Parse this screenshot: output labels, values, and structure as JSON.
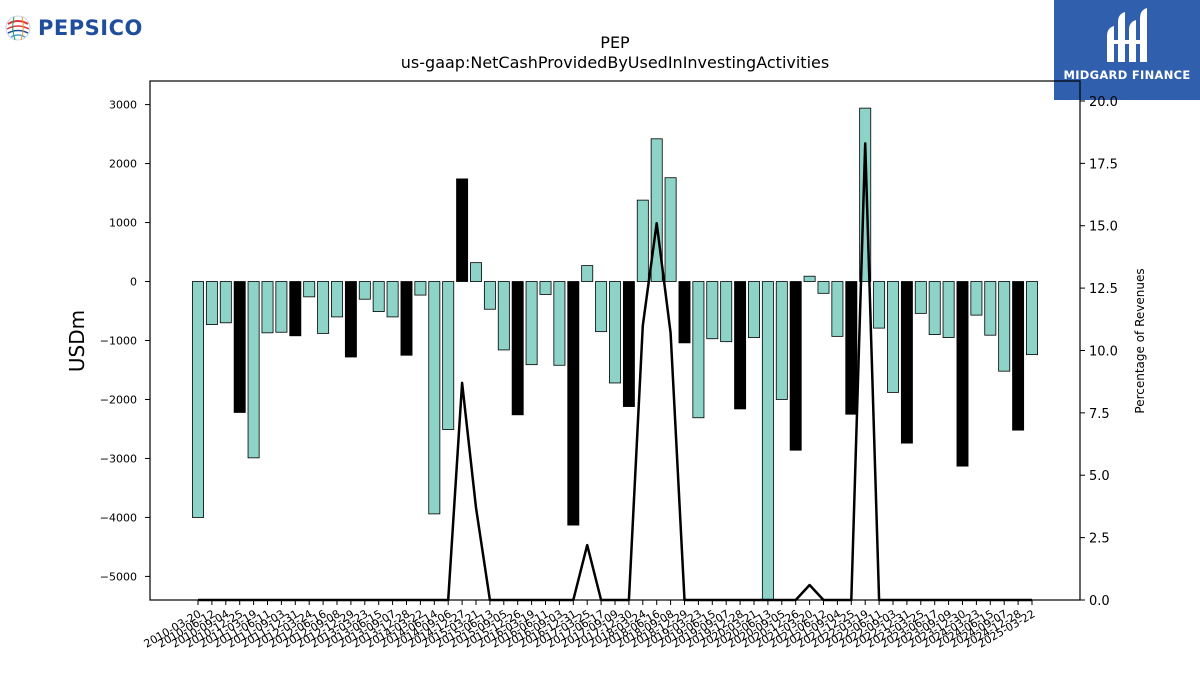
{
  "brand": {
    "left_logo_text": "PEPSICO",
    "right_logo_text": "MIDGARD FINANCE",
    "left_accent": "#1f4f9c",
    "right_background": "#2f5fad"
  },
  "chart_data": {
    "type": "bar",
    "title": "PEP",
    "subtitle": "us-gaap:NetCashProvidedByUsedInInvestingActivities",
    "ylabel": "USDm",
    "y2label": "Percentage of Revenues",
    "ylim": [
      -5400,
      3400
    ],
    "yticks": [
      3000,
      2000,
      1000,
      0,
      -1000,
      -2000,
      -3000,
      -4000,
      -5000
    ],
    "ytick_labels": [
      "3000",
      "2000",
      "1000",
      "0",
      "−1000",
      "−2000",
      "−3000",
      "−4000",
      "−5000"
    ],
    "y2lim": [
      0,
      20.8
    ],
    "y2ticks": [
      0,
      2.5,
      5,
      7.5,
      10,
      12.5,
      15,
      17.5,
      20
    ],
    "y2tick_labels": [
      "0.0",
      "2.5",
      "5.0",
      "7.5",
      "10.0",
      "12.5",
      "15.0",
      "17.5",
      "20.0"
    ],
    "grid": false,
    "legend": "none",
    "colors": {
      "quarter": "#8dd3c7",
      "annual": "#000000",
      "line": "#000000",
      "edge": "#000000"
    },
    "categories": [
      "2010-03-20",
      "2010-06-12",
      "2010-09-04",
      "2010-12-25",
      "2011-03-19",
      "2011-06-11",
      "2011-09-03",
      "2011-12-31",
      "2012-03-24",
      "2012-06-16",
      "2012-09-08",
      "2012-12-29",
      "2013-03-23",
      "2013-06-15",
      "2013-09-07",
      "2013-12-28",
      "2014-03-22",
      "2014-06-14",
      "2014-09-06",
      "2014-12-27",
      "2015-03-21",
      "2015-06-13",
      "2015-09-05",
      "2015-12-26",
      "2016-03-19",
      "2016-06-11",
      "2016-09-03",
      "2016-12-31",
      "2017-03-25",
      "2017-06-17",
      "2017-09-09",
      "2017-12-30",
      "2018-03-24",
      "2018-06-16",
      "2018-09-08",
      "2018-12-29",
      "2019-03-23",
      "2019-06-15",
      "2019-09-07",
      "2019-12-28",
      "2020-03-21",
      "2020-06-13",
      "2020-09-05",
      "2020-12-26",
      "2021-03-20",
      "2021-06-12",
      "2021-09-04",
      "2021-12-25",
      "2022-03-19",
      "2022-06-11",
      "2022-09-03",
      "2022-12-31",
      "2023-03-25",
      "2023-06-17",
      "2023-09-09",
      "2023-12-30",
      "2024-03-23",
      "2024-06-15",
      "2024-09-07",
      "2024-12-28",
      "2025-03-22"
    ],
    "values": [
      -4000,
      -730,
      -700,
      -2220,
      -2990,
      -870,
      -860,
      -920,
      -260,
      -880,
      -600,
      -1280,
      -300,
      -510,
      -600,
      -1250,
      -230,
      -3940,
      -2510,
      1740,
      320,
      -470,
      -1160,
      -2260,
      -1410,
      -220,
      -1420,
      -4130,
      270,
      -850,
      -1720,
      -2120,
      1380,
      2420,
      1760,
      -1040,
      -2310,
      -970,
      -1020,
      -2160,
      -950,
      -5400,
      -2000,
      -2860,
      90,
      -200,
      -930,
      -2250,
      2940,
      -790,
      -1880,
      -2740,
      -540,
      -900,
      -950,
      -3130,
      -570,
      -910,
      -1520,
      -2520,
      -1240
    ],
    "annual": [
      false,
      false,
      false,
      true,
      false,
      false,
      false,
      true,
      false,
      false,
      false,
      true,
      false,
      false,
      false,
      true,
      false,
      false,
      false,
      true,
      false,
      false,
      false,
      true,
      false,
      false,
      false,
      true,
      false,
      false,
      false,
      true,
      false,
      false,
      false,
      true,
      false,
      false,
      false,
      true,
      false,
      false,
      false,
      true,
      false,
      false,
      false,
      true,
      false,
      false,
      false,
      true,
      false,
      false,
      false,
      true,
      false,
      false,
      false,
      true,
      false
    ],
    "pct_line": [
      0,
      0,
      0,
      0,
      0,
      0,
      0,
      0,
      0,
      0,
      0,
      0,
      0,
      0,
      0,
      0,
      0,
      0,
      0,
      8.7,
      3.7,
      0,
      0,
      0,
      0,
      0,
      0,
      0,
      2.2,
      0,
      0,
      0,
      11,
      15.1,
      10.7,
      0,
      0,
      0,
      0,
      0,
      0,
      0,
      0,
      0,
      0.6,
      0,
      0,
      0,
      18.3,
      0,
      0,
      0,
      0,
      0,
      0,
      0,
      0,
      0,
      0,
      0,
      0
    ]
  }
}
